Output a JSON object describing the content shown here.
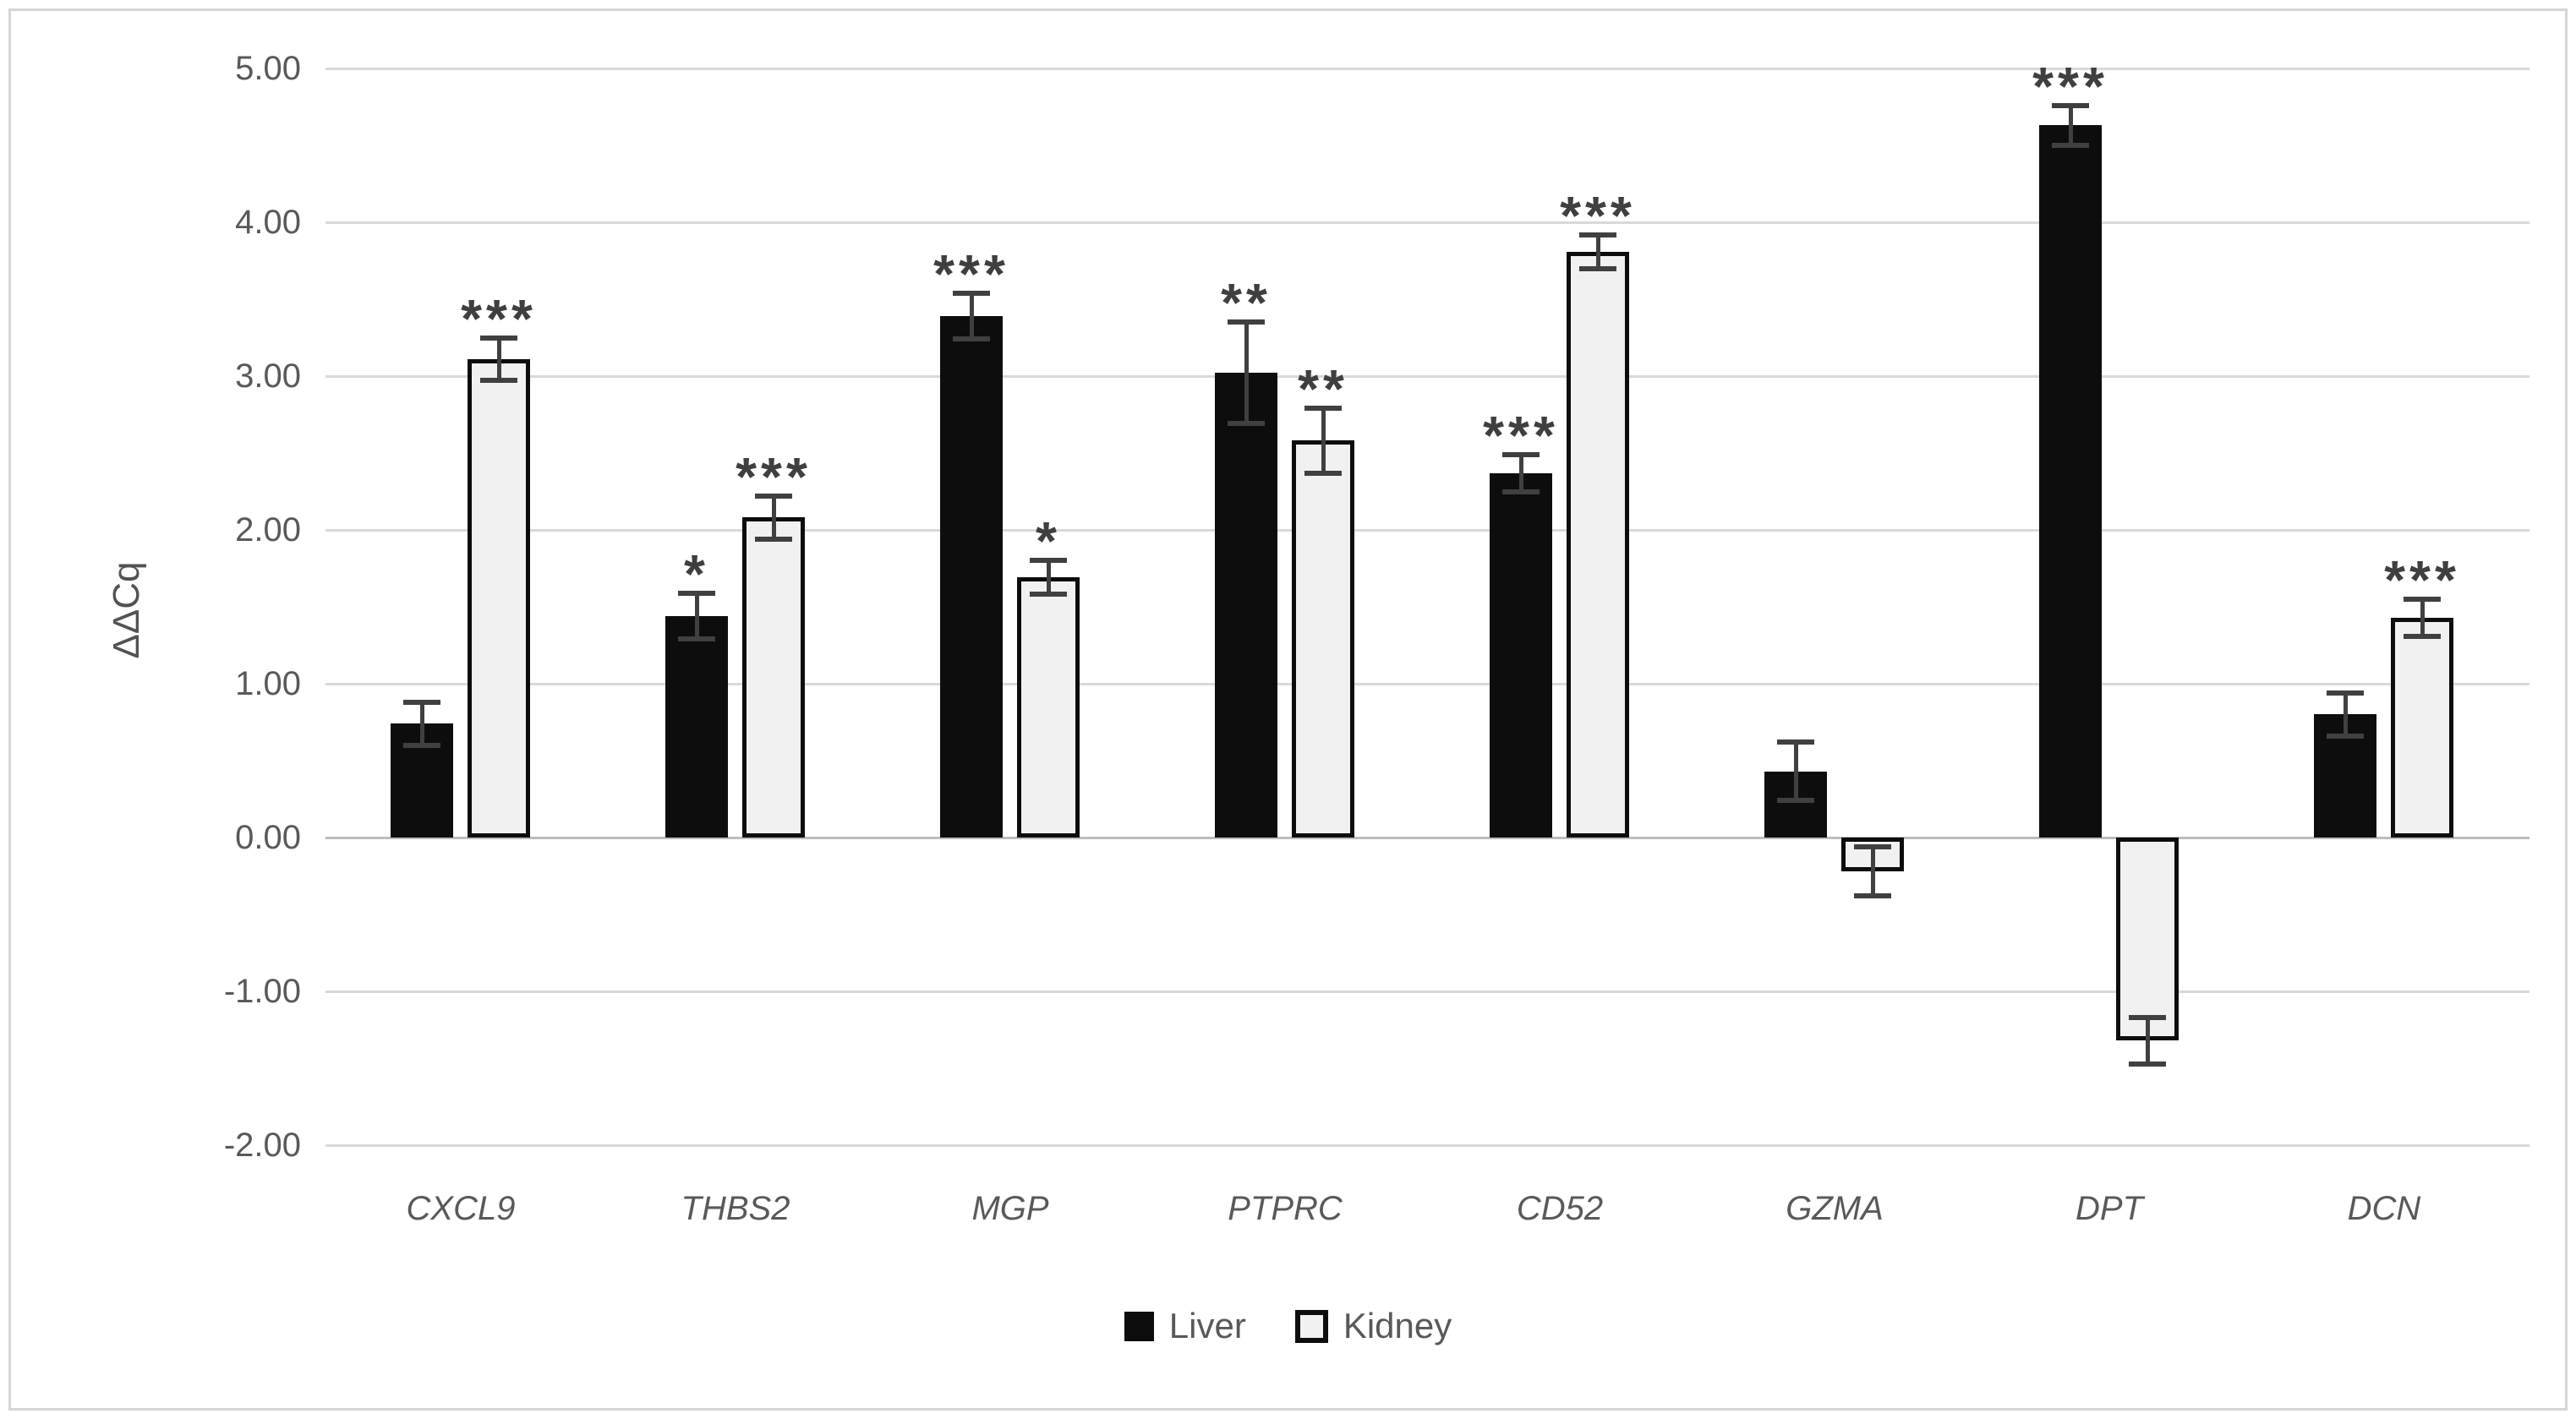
{
  "chart_data": {
    "type": "bar",
    "title": "",
    "ylabel": "ΔΔCq",
    "xlabel": "",
    "categories": [
      "CXCL9",
      "THBS2",
      "MGP",
      "PTPRC",
      "CD52",
      "GZMA",
      "DPT",
      "DCN"
    ],
    "y_tick_labels": [
      "5.00",
      "4.00",
      "3.00",
      "2.00",
      "1.00",
      "0.00",
      "-1.00",
      "-2.00"
    ],
    "ylim": [
      -2.0,
      5.0
    ],
    "grid": true,
    "legend_position": "bottom",
    "series": [
      {
        "name": "Liver",
        "values": [
          0.74,
          1.44,
          3.39,
          3.02,
          2.37,
          0.43,
          4.63,
          0.8
        ],
        "errors": [
          0.14,
          0.15,
          0.15,
          0.33,
          0.12,
          0.19,
          0.13,
          0.14
        ],
        "significance": [
          "",
          "*",
          "***",
          "**",
          "***",
          "",
          "***",
          ""
        ]
      },
      {
        "name": "Kidney",
        "values": [
          3.11,
          2.08,
          1.69,
          2.58,
          3.81,
          -0.22,
          -1.32,
          1.43
        ],
        "errors": [
          0.14,
          0.14,
          0.11,
          0.21,
          0.11,
          0.16,
          0.15,
          0.12
        ],
        "significance": [
          "***",
          "***",
          "*",
          "**",
          "***",
          "",
          "",
          "***"
        ]
      }
    ]
  },
  "colors": {
    "bar_liver": "#0d0d0d",
    "bar_kidney_fill": "#f1f1f1",
    "bar_kidney_border": "#0d0d0d",
    "gridline": "#d9d9d9",
    "zero_line": "#bdbdbd",
    "error_bar": "#404040",
    "axis_text": "#595959",
    "stars": "#3f3f3f",
    "frame": "#d6d6d6",
    "background": "#ffffff"
  }
}
